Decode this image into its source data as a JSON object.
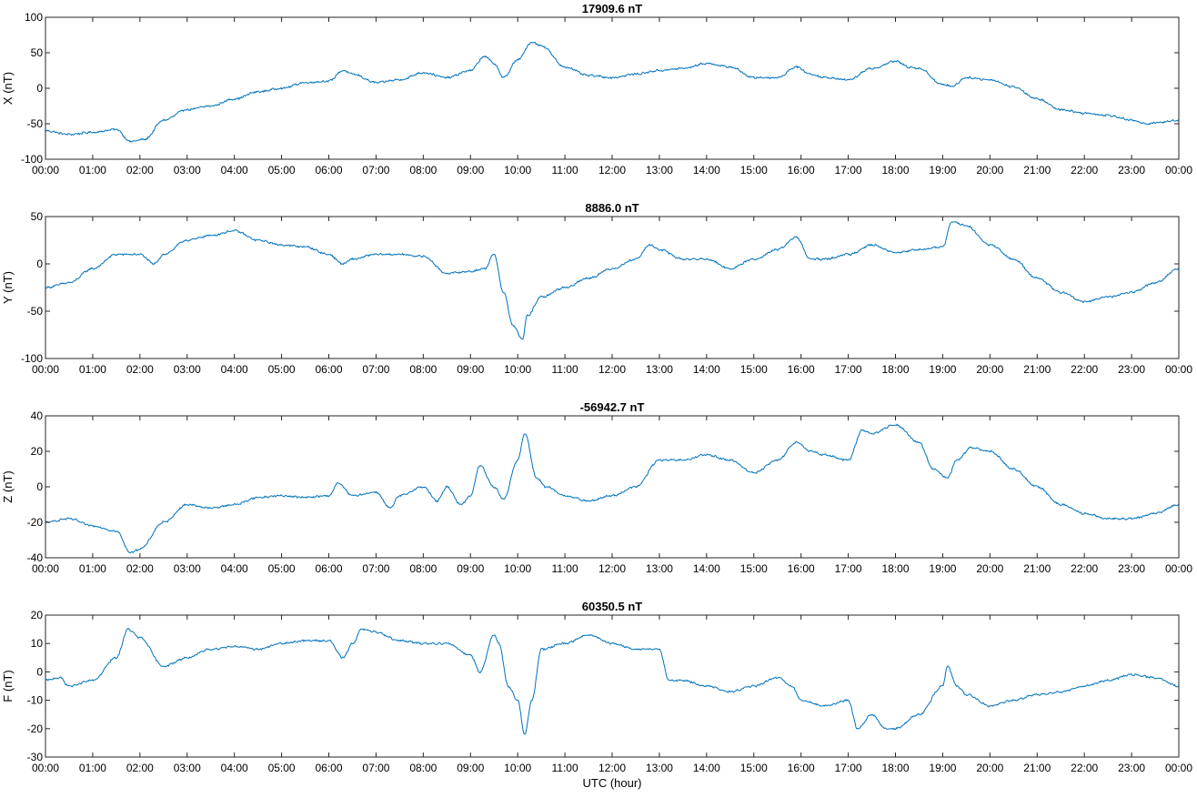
{
  "chart_data": [
    {
      "type": "line",
      "title": "17909.6 nT",
      "ylabel": "X (nT)",
      "xlabel": "",
      "ylim": [
        -100,
        100
      ],
      "yticks": [
        -100,
        -50,
        0,
        50,
        100
      ],
      "xtick_labels": [
        "00:00",
        "01:00",
        "02:00",
        "03:00",
        "04:00",
        "05:00",
        "06:00",
        "07:00",
        "08:00",
        "09:00",
        "10:00",
        "11:00",
        "12:00",
        "13:00",
        "14:00",
        "15:00",
        "16:00",
        "17:00",
        "18:00",
        "19:00",
        "20:00",
        "21:00",
        "22:00",
        "23:00",
        "00:00"
      ],
      "xlim_hours": [
        0,
        24
      ],
      "color": "#0072bd",
      "series": [
        {
          "x": [
            0,
            0.5,
            1.0,
            1.5,
            1.8,
            2.1,
            2.5,
            3.0,
            3.5,
            4.0,
            4.5,
            5.0,
            5.5,
            6.0,
            6.3,
            6.5,
            7.0,
            7.5,
            8.0,
            8.5,
            9.0,
            9.3,
            9.5,
            9.7,
            10.0,
            10.3,
            10.5,
            11.0,
            11.5,
            12.0,
            12.5,
            13.0,
            13.5,
            14.0,
            14.5,
            15.0,
            15.5,
            15.9,
            16.2,
            16.5,
            17.0,
            17.5,
            18.0,
            18.3,
            18.5,
            19.0,
            19.2,
            19.5,
            20.0,
            20.5,
            21.0,
            21.5,
            22.0,
            22.5,
            23.0,
            23.3,
            23.6,
            24.0
          ],
          "y": [
            -60,
            -65,
            -62,
            -58,
            -75,
            -72,
            -45,
            -30,
            -25,
            -15,
            -5,
            0,
            8,
            10,
            25,
            20,
            8,
            12,
            22,
            15,
            25,
            45,
            35,
            15,
            40,
            65,
            60,
            30,
            18,
            15,
            20,
            25,
            28,
            35,
            30,
            15,
            15,
            30,
            20,
            15,
            12,
            28,
            38,
            30,
            28,
            5,
            3,
            15,
            12,
            2,
            -15,
            -30,
            -35,
            -38,
            -45,
            -50,
            -48,
            -45
          ]
        }
      ]
    },
    {
      "type": "line",
      "title": "8886.0 nT",
      "ylabel": "Y (nT)",
      "xlabel": "",
      "ylim": [
        -100,
        50
      ],
      "yticks": [
        -100,
        -50,
        0,
        50
      ],
      "xtick_labels": [
        "00:00",
        "01:00",
        "02:00",
        "03:00",
        "04:00",
        "05:00",
        "06:00",
        "07:00",
        "08:00",
        "09:00",
        "10:00",
        "11:00",
        "12:00",
        "13:00",
        "14:00",
        "15:00",
        "16:00",
        "17:00",
        "18:00",
        "19:00",
        "20:00",
        "21:00",
        "22:00",
        "23:00",
        "00:00"
      ],
      "xlim_hours": [
        0,
        24
      ],
      "color": "#0072bd",
      "series": [
        {
          "x": [
            0,
            0.5,
            1.0,
            1.5,
            2.0,
            2.3,
            2.5,
            3.0,
            3.5,
            4.0,
            4.5,
            5.0,
            5.5,
            6.0,
            6.3,
            6.5,
            7.0,
            7.5,
            8.0,
            8.5,
            9.0,
            9.3,
            9.5,
            9.7,
            9.9,
            10.1,
            10.2,
            10.5,
            11.0,
            11.5,
            12.0,
            12.5,
            12.8,
            13.0,
            13.5,
            14.0,
            14.5,
            15.0,
            15.5,
            15.9,
            16.2,
            16.5,
            17.0,
            17.5,
            18.0,
            18.5,
            19.0,
            19.2,
            19.5,
            20.0,
            20.5,
            21.0,
            21.5,
            22.0,
            22.5,
            23.0,
            23.5,
            24.0
          ],
          "y": [
            -25,
            -20,
            -5,
            10,
            10,
            0,
            10,
            25,
            30,
            35,
            25,
            20,
            18,
            10,
            0,
            5,
            10,
            10,
            8,
            -10,
            -8,
            -5,
            10,
            -30,
            -65,
            -80,
            -55,
            -35,
            -25,
            -15,
            -5,
            5,
            20,
            15,
            5,
            5,
            -5,
            5,
            15,
            28,
            5,
            5,
            10,
            20,
            12,
            15,
            18,
            45,
            40,
            20,
            5,
            -15,
            -30,
            -40,
            -35,
            -30,
            -20,
            -5
          ]
        }
      ]
    },
    {
      "type": "line",
      "title": "-56942.7 nT",
      "ylabel": "Z (nT)",
      "xlabel": "",
      "ylim": [
        -40,
        40
      ],
      "yticks": [
        -40,
        -20,
        0,
        20,
        40
      ],
      "xtick_labels": [
        "00:00",
        "01:00",
        "02:00",
        "03:00",
        "04:00",
        "05:00",
        "06:00",
        "07:00",
        "08:00",
        "09:00",
        "10:00",
        "11:00",
        "12:00",
        "13:00",
        "14:00",
        "15:00",
        "16:00",
        "17:00",
        "18:00",
        "19:00",
        "20:00",
        "21:00",
        "22:00",
        "23:00",
        "00:00"
      ],
      "xlim_hours": [
        0,
        24
      ],
      "color": "#0072bd",
      "series": [
        {
          "x": [
            0,
            0.5,
            1.0,
            1.5,
            1.8,
            2.0,
            2.5,
            3.0,
            3.5,
            4.0,
            4.5,
            5.0,
            5.5,
            6.0,
            6.2,
            6.5,
            7.0,
            7.3,
            7.5,
            8.0,
            8.3,
            8.5,
            8.8,
            9.0,
            9.2,
            9.5,
            9.7,
            10.0,
            10.15,
            10.4,
            10.6,
            11.0,
            11.5,
            12.0,
            12.5,
            13.0,
            13.5,
            14.0,
            14.5,
            15.0,
            15.5,
            15.9,
            16.2,
            16.5,
            17.0,
            17.3,
            17.5,
            18.0,
            18.5,
            18.8,
            19.1,
            19.3,
            19.6,
            20.0,
            20.5,
            21.0,
            21.5,
            22.0,
            22.5,
            23.0,
            23.5,
            24.0
          ],
          "y": [
            -20,
            -18,
            -22,
            -25,
            -37,
            -35,
            -20,
            -10,
            -12,
            -10,
            -6,
            -5,
            -6,
            -5,
            2,
            -5,
            -3,
            -12,
            -5,
            0,
            -8,
            0,
            -10,
            -5,
            12,
            0,
            -7,
            15,
            30,
            5,
            0,
            -5,
            -8,
            -5,
            0,
            15,
            15,
            18,
            15,
            8,
            15,
            25,
            20,
            18,
            15,
            32,
            30,
            35,
            25,
            10,
            5,
            15,
            22,
            20,
            10,
            0,
            -10,
            -15,
            -18,
            -18,
            -15,
            -10
          ]
        }
      ]
    },
    {
      "type": "line",
      "title": "60350.5 nT",
      "ylabel": "F (nT)",
      "xlabel": "UTC (hour)",
      "ylim": [
        -30,
        20
      ],
      "yticks": [
        -30,
        -20,
        -10,
        0,
        10,
        20
      ],
      "xtick_labels": [
        "00:00",
        "01:00",
        "02:00",
        "03:00",
        "04:00",
        "05:00",
        "06:00",
        "07:00",
        "08:00",
        "09:00",
        "10:00",
        "11:00",
        "12:00",
        "13:00",
        "14:00",
        "15:00",
        "16:00",
        "17:00",
        "18:00",
        "19:00",
        "20:00",
        "21:00",
        "22:00",
        "23:00",
        "00:00"
      ],
      "xlim_hours": [
        0,
        24
      ],
      "color": "#0072bd",
      "series": [
        {
          "x": [
            0,
            0.3,
            0.5,
            1.0,
            1.5,
            1.75,
            2.0,
            2.5,
            3.0,
            3.5,
            4.0,
            4.5,
            5.0,
            5.5,
            6.0,
            6.3,
            6.5,
            6.7,
            7.0,
            7.5,
            8.0,
            8.5,
            9.0,
            9.2,
            9.5,
            9.6,
            9.8,
            10.0,
            10.15,
            10.3,
            10.5,
            11.0,
            11.5,
            12.0,
            12.5,
            13.0,
            13.2,
            13.5,
            14.0,
            14.5,
            15.0,
            15.5,
            15.8,
            16.0,
            16.5,
            17.0,
            17.2,
            17.5,
            17.8,
            18.0,
            18.5,
            19.0,
            19.1,
            19.3,
            19.5,
            20.0,
            20.5,
            21.0,
            21.5,
            22.0,
            22.5,
            23.0,
            23.5,
            24.0
          ],
          "y": [
            -3,
            -2,
            -5,
            -3,
            5,
            15,
            12,
            2,
            5,
            8,
            9,
            8,
            10,
            11,
            11,
            5,
            10,
            15,
            14,
            11,
            10,
            10,
            6,
            0,
            13,
            10,
            -5,
            -10,
            -22,
            -10,
            8,
            10,
            13,
            10,
            8,
            8,
            -3,
            -3,
            -5,
            -7,
            -5,
            -2,
            -5,
            -10,
            -12,
            -10,
            -20,
            -15,
            -20,
            -20,
            -15,
            -5,
            2,
            -5,
            -8,
            -12,
            -10,
            -8,
            -7,
            -5,
            -3,
            -1,
            -2,
            -5
          ]
        }
      ]
    }
  ]
}
